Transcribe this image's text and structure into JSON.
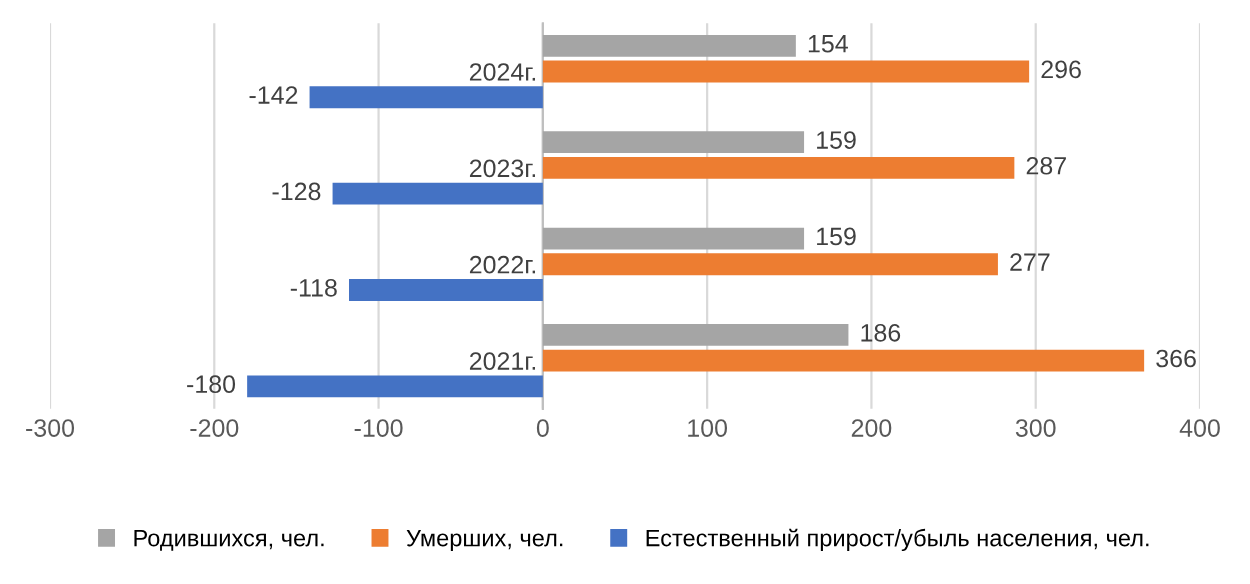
{
  "chart_data": {
    "type": "bar",
    "orientation": "horizontal",
    "categories": [
      "2024г.",
      "2023г.",
      "2022г.",
      "2021г."
    ],
    "series": [
      {
        "name": "Родившихся, чел.",
        "color": "#a5a5a5",
        "values": [
          154,
          159,
          159,
          186
        ]
      },
      {
        "name": "Умерших, чел.",
        "color": "#ed7d31",
        "values": [
          296,
          287,
          277,
          366
        ]
      },
      {
        "name": "Естественный прирост/убыль населения, чел.",
        "color": "#4472c4",
        "values": [
          -142,
          -128,
          -118,
          -180
        ]
      }
    ],
    "xlim": [
      -300,
      400
    ],
    "xticks": [
      -300,
      -200,
      -100,
      0,
      100,
      200,
      300,
      400
    ],
    "grid": "x",
    "legend": "bottom",
    "data_labels": true
  }
}
